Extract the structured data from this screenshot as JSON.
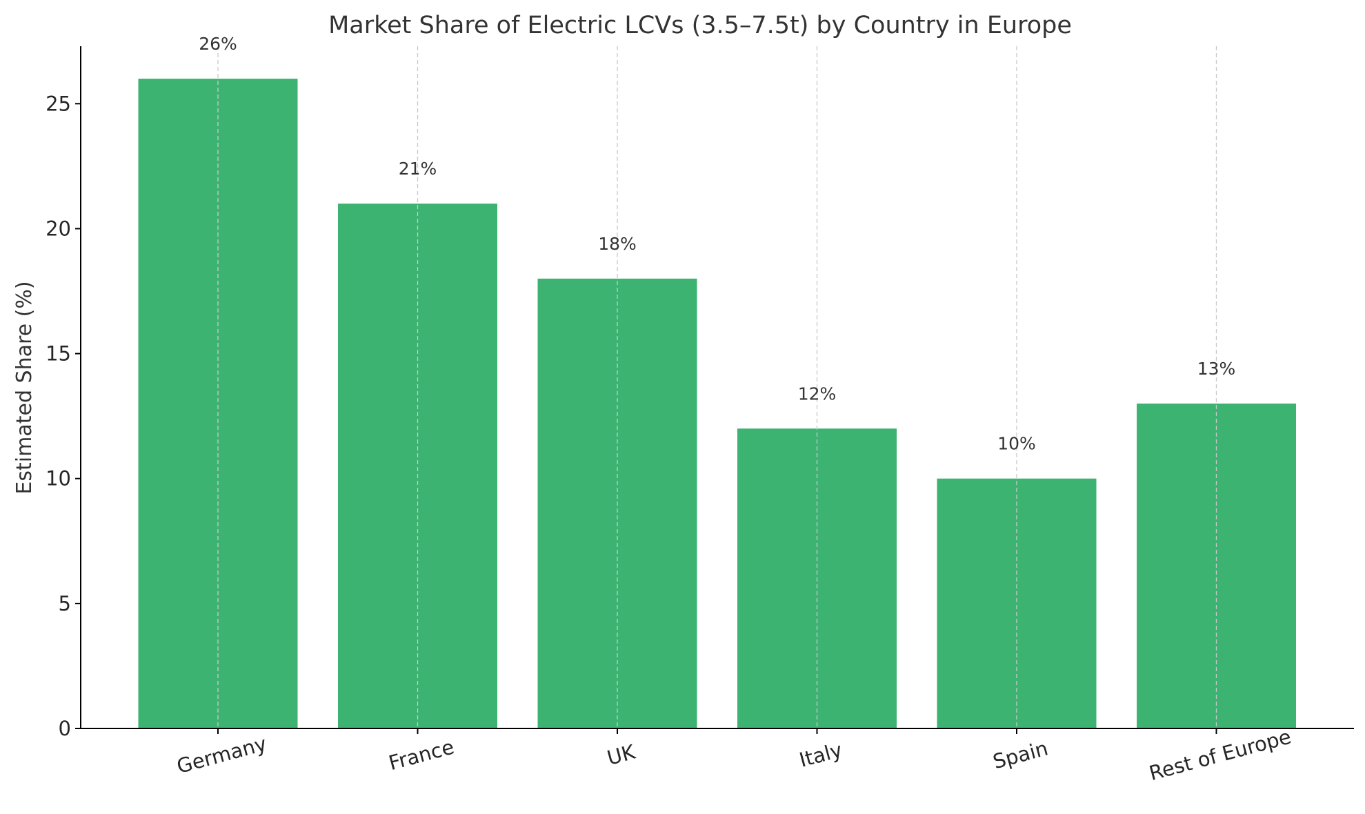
{
  "chart_data": {
    "type": "bar",
    "title": "Market Share of Electric LCVs (3.5–7.5t) by Country in Europe",
    "xlabel": "",
    "ylabel": "Estimated Share (%)",
    "categories": [
      "Germany",
      "France",
      "UK",
      "Italy",
      "Spain",
      "Rest of Europe"
    ],
    "values": [
      26,
      21,
      18,
      12,
      10,
      13
    ],
    "value_labels": [
      "26%",
      "21%",
      "18%",
      "12%",
      "10%",
      "13%"
    ],
    "ylim": [
      0,
      27.3
    ],
    "yticks": [
      0,
      5,
      10,
      15,
      20,
      25
    ],
    "ytick_labels": [
      "0",
      "5",
      "10",
      "15",
      "20",
      "25"
    ],
    "bar_color": "#3cb371",
    "grid": "vertical dashed at categories",
    "legend": "none"
  }
}
